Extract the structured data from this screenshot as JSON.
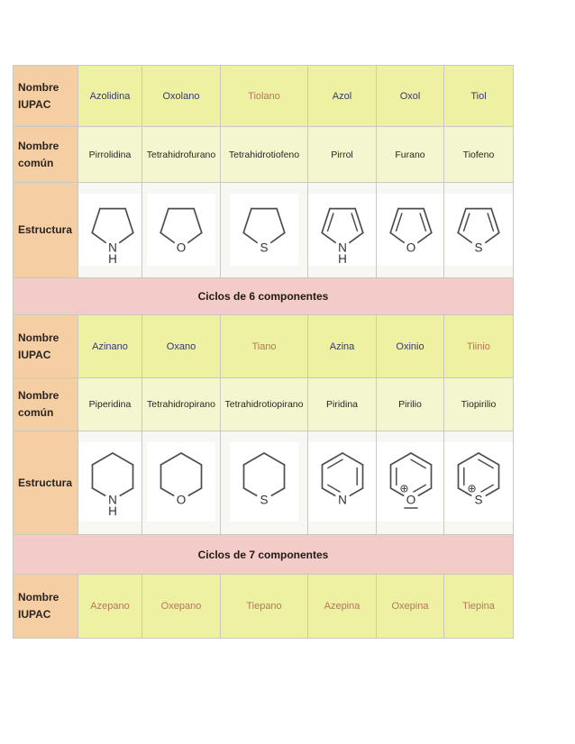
{
  "page": {
    "background": "#ffffff"
  },
  "colors": {
    "navy_link": "#333a70",
    "salmon_link": "#b5775e",
    "peach": "#f5cfa3",
    "yellow": "#eef0a2",
    "light_yellow": "#f4f6cf",
    "pink": "#f3cbc8",
    "structure_bg": "#f7f7f4"
  },
  "table": {
    "row_labels": {
      "iupac": "Nombre IUPAC",
      "common": "Nombre común",
      "structure": "Estructura"
    },
    "sections": [
      {
        "iupac": [
          {
            "text": "Azolidina",
            "color": "navy"
          },
          {
            "text": "Oxolano",
            "color": "navy"
          },
          {
            "text": "Tiolano",
            "color": "salmon"
          },
          {
            "text": "Azol",
            "color": "navy"
          },
          {
            "text": "Oxol",
            "color": "navy"
          },
          {
            "text": "Tiol",
            "color": "navy"
          }
        ],
        "common": [
          "Pirrolidina",
          "Tetrahidrofurano",
          "Tetrahidrotiofeno",
          "Pirrol",
          "Furano",
          "Tiofeno"
        ],
        "structures": [
          {
            "name": "pirrolidina",
            "ring": 5,
            "aromatic": false,
            "atom": "N",
            "hydrogen": true
          },
          {
            "name": "tetrahidrofurano",
            "ring": 5,
            "aromatic": false,
            "atom": "O",
            "hydrogen": false
          },
          {
            "name": "tetrahidrotiofeno",
            "ring": 5,
            "aromatic": false,
            "atom": "S",
            "hydrogen": false
          },
          {
            "name": "pirrol",
            "ring": 5,
            "aromatic": true,
            "atom": "N",
            "hydrogen": true
          },
          {
            "name": "furano",
            "ring": 5,
            "aromatic": true,
            "atom": "O",
            "hydrogen": false
          },
          {
            "name": "tiofeno",
            "ring": 5,
            "aromatic": true,
            "atom": "S",
            "hydrogen": false
          }
        ]
      },
      {
        "header": "Ciclos de 6 componentes",
        "iupac": [
          {
            "text": "Azinano",
            "color": "navy"
          },
          {
            "text": "Oxano",
            "color": "navy"
          },
          {
            "text": "Tiano",
            "color": "salmon"
          },
          {
            "text": "Azina",
            "color": "navy"
          },
          {
            "text": "Oxinio",
            "color": "navy"
          },
          {
            "text": "Tiinio",
            "color": "salmon"
          }
        ],
        "common": [
          "Piperidina",
          "Tetrahidropirano",
          "Tetrahidrotiopirano",
          "Piridina",
          "Pirilio",
          "Tiopirilio"
        ],
        "structures": [
          {
            "name": "piperidina",
            "ring": 6,
            "aromatic": false,
            "atom": "N",
            "hydrogen": true
          },
          {
            "name": "tetrahidropirano",
            "ring": 6,
            "aromatic": false,
            "atom": "O",
            "hydrogen": false
          },
          {
            "name": "tetrahidrotiopirano",
            "ring": 6,
            "aromatic": false,
            "atom": "S",
            "hydrogen": false
          },
          {
            "name": "piridina",
            "ring": 6,
            "aromatic": true,
            "atom": "N",
            "hydrogen": false
          },
          {
            "name": "pirilio",
            "ring": 6,
            "aromatic": true,
            "atom": "O",
            "hydrogen": false,
            "charge": true,
            "lone_pair": true
          },
          {
            "name": "tiopirilio",
            "ring": 6,
            "aromatic": true,
            "atom": "S",
            "hydrogen": false,
            "charge": true
          }
        ]
      },
      {
        "header": "Ciclos de 7 componentes",
        "iupac": [
          {
            "text": "Azepano",
            "color": "salmon"
          },
          {
            "text": "Oxepano",
            "color": "salmon"
          },
          {
            "text": "Tiepano",
            "color": "salmon"
          },
          {
            "text": "Azepina",
            "color": "salmon"
          },
          {
            "text": "Oxepina",
            "color": "salmon"
          },
          {
            "text": "Tiepina",
            "color": "salmon"
          }
        ]
      }
    ]
  }
}
